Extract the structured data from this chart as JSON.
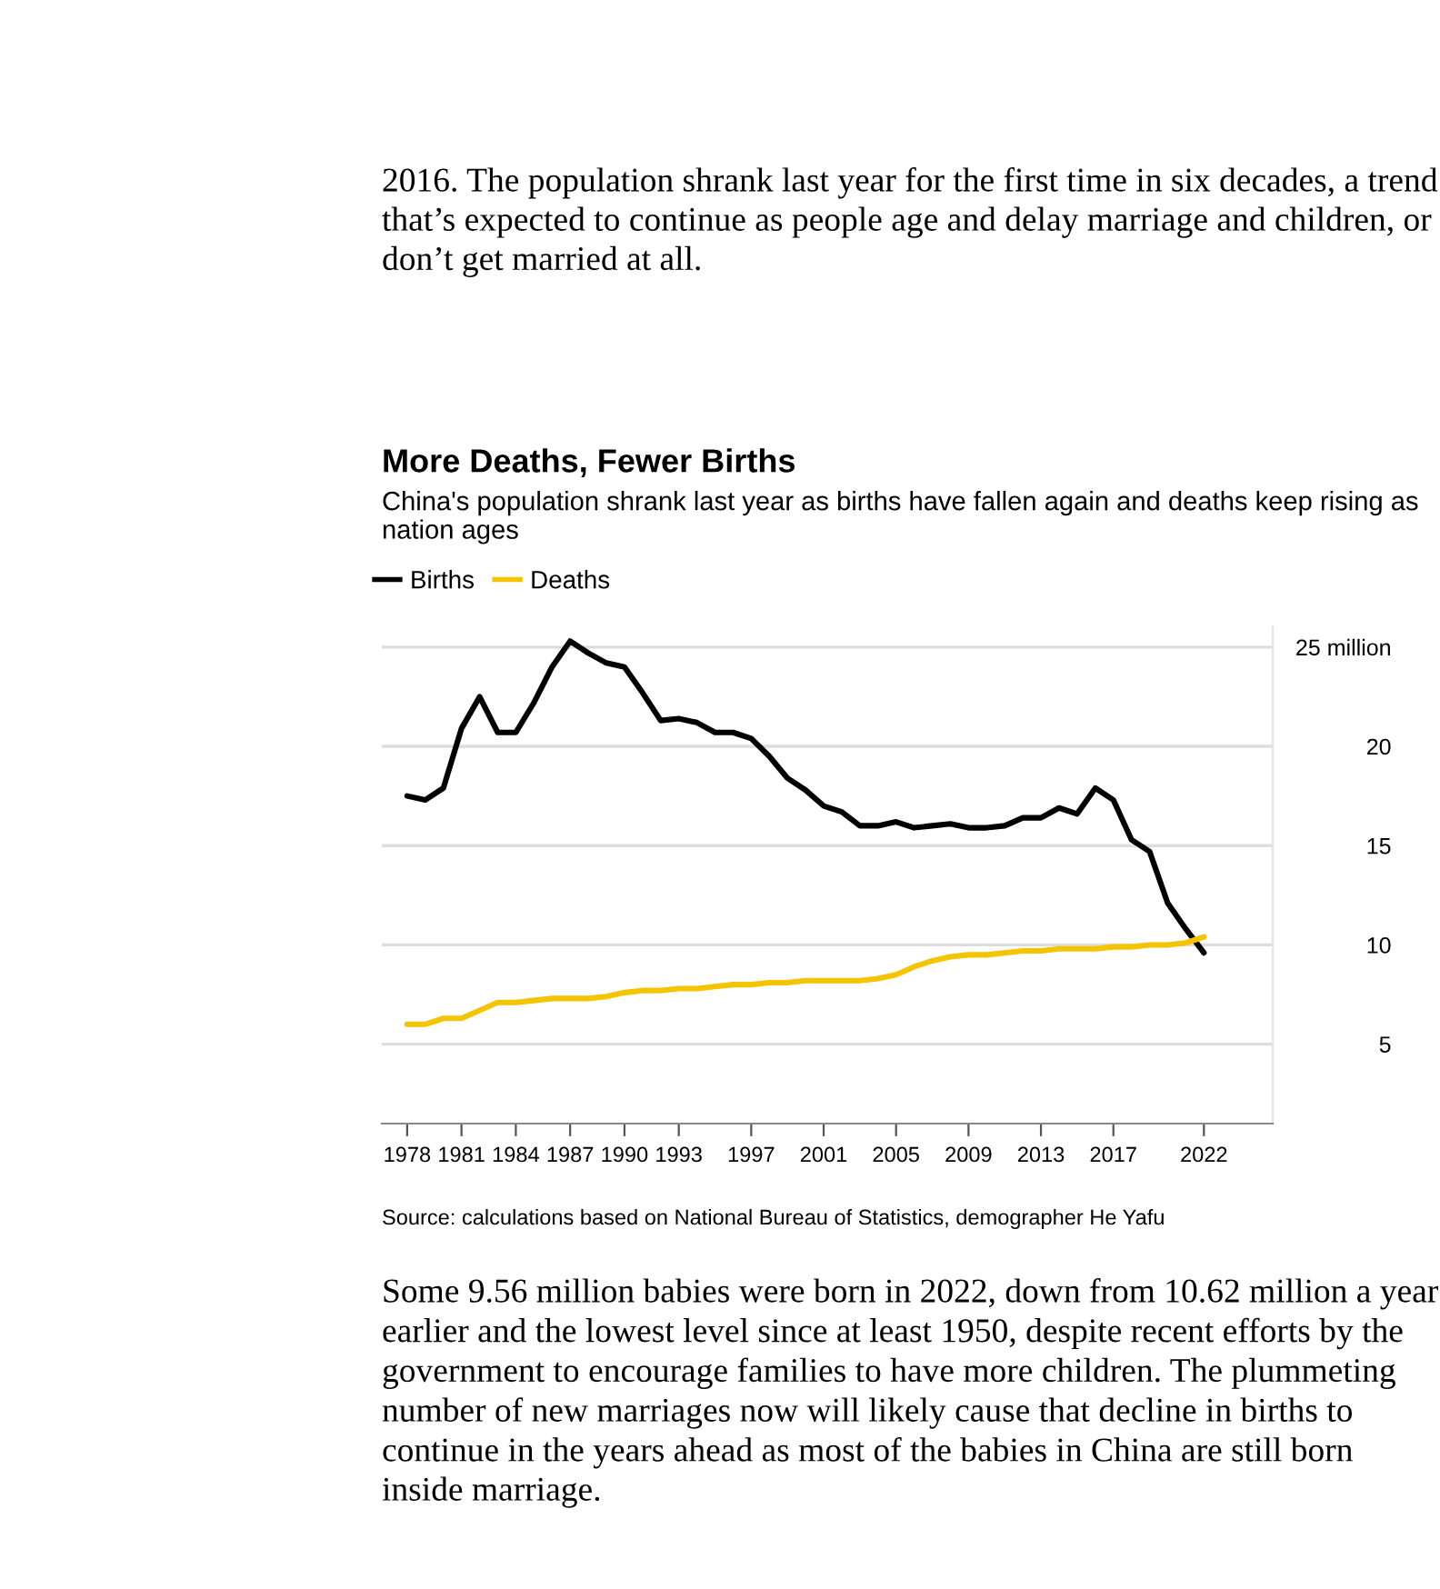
{
  "chart_data": {
    "type": "line",
    "title": "More Deaths, Fewer Births",
    "subtitle": "China's population shrank last year as births have fallen again and deaths keep rising as nation ages",
    "x": [
      1978,
      1979,
      1980,
      1981,
      1982,
      1983,
      1984,
      1985,
      1986,
      1987,
      1988,
      1989,
      1990,
      1991,
      1992,
      1993,
      1994,
      1995,
      1996,
      1997,
      1998,
      1999,
      2000,
      2001,
      2002,
      2003,
      2004,
      2005,
      2006,
      2007,
      2008,
      2009,
      2010,
      2011,
      2012,
      2013,
      2014,
      2015,
      2016,
      2017,
      2018,
      2019,
      2020,
      2021,
      2022
    ],
    "series": [
      {
        "name": "Births",
        "color": "#000000",
        "values": [
          17.5,
          17.3,
          17.9,
          20.9,
          22.5,
          20.7,
          20.7,
          22.2,
          24.0,
          25.3,
          24.7,
          24.2,
          24.0,
          22.7,
          21.3,
          21.4,
          21.2,
          20.7,
          20.7,
          20.4,
          19.5,
          18.4,
          17.8,
          17.0,
          16.7,
          16.0,
          16.0,
          16.2,
          15.9,
          16.0,
          16.1,
          15.9,
          15.9,
          16.0,
          16.4,
          16.4,
          16.9,
          16.6,
          17.9,
          17.3,
          15.3,
          14.7,
          12.1,
          10.8,
          9.6
        ]
      },
      {
        "name": "Deaths",
        "color": "#f5c400",
        "values": [
          6.0,
          6.0,
          6.3,
          6.3,
          6.7,
          7.1,
          7.1,
          7.2,
          7.3,
          7.3,
          7.3,
          7.4,
          7.6,
          7.7,
          7.7,
          7.8,
          7.8,
          7.9,
          8.0,
          8.0,
          8.1,
          8.1,
          8.2,
          8.2,
          8.2,
          8.2,
          8.3,
          8.5,
          8.9,
          9.2,
          9.4,
          9.5,
          9.5,
          9.6,
          9.7,
          9.7,
          9.8,
          9.8,
          9.8,
          9.9,
          9.9,
          10.0,
          10.0,
          10.1,
          10.4
        ]
      }
    ],
    "xlim": [
      1976.6,
      2025.8
    ],
    "xticks": [
      1978,
      1981,
      1984,
      1987,
      1990,
      1993,
      1997,
      2001,
      2005,
      2009,
      2013,
      2017,
      2022
    ],
    "ylim": [
      1,
      26
    ],
    "yticks": [
      5,
      10,
      15,
      20,
      {
        "value": 25,
        "label": "25 million"
      }
    ],
    "grid": "y",
    "legend": "top left",
    "marker": "none",
    "line_style": "solid",
    "annotations": [
      "Source: calculations based on National Bureau of Statistics, demographer He Yafu",
      "2016. The population shrank last year for the first time in six decades, a trend that’s expected to continue as people age and delay marriage and children, or don’t get married at all.",
      "Some 9.56 million babies were born in 2022, down from 10.62 million a year earlier and the lowest level since at least 1950, despite recent efforts by the government to encourage families to have more children. The plummeting number of new marriages now will likely cause that decline in births to continue in the years ahead as most of the babies in China are still born inside marriage."
    ]
  }
}
